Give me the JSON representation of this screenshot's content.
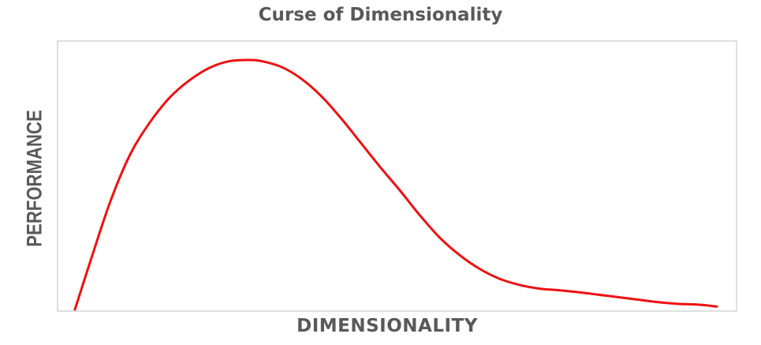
{
  "chart_data": {
    "type": "line",
    "title": "Curse of Dimensionality",
    "xlabel": "DIMENSIONALITY",
    "ylabel": "PERFORMANCE",
    "xlim": [
      0,
      100
    ],
    "ylim": [
      0,
      100
    ],
    "grid": false,
    "line_color": "#ee1111",
    "frame_color": "#bfbfbf",
    "series": [
      {
        "x": [
          2.6,
          5,
          8,
          11,
          14,
          17,
          20,
          23,
          26,
          29,
          31,
          34,
          37,
          40,
          43,
          46,
          49,
          52,
          55,
          58,
          61,
          64,
          67,
          70,
          73,
          76,
          79,
          82,
          85,
          88,
          91,
          94,
          97,
          100
        ],
        "y": [
          -2,
          18,
          42,
          61,
          74,
          84,
          91,
          96,
          98.7,
          99.2,
          98.7,
          96.3,
          91.5,
          84.5,
          75.5,
          65.5,
          55.5,
          46,
          36,
          27,
          20,
          14.5,
          10.5,
          8,
          6.5,
          5.8,
          5,
          4,
          3,
          2,
          1,
          0.3,
          0,
          -0.8
        ]
      }
    ]
  }
}
